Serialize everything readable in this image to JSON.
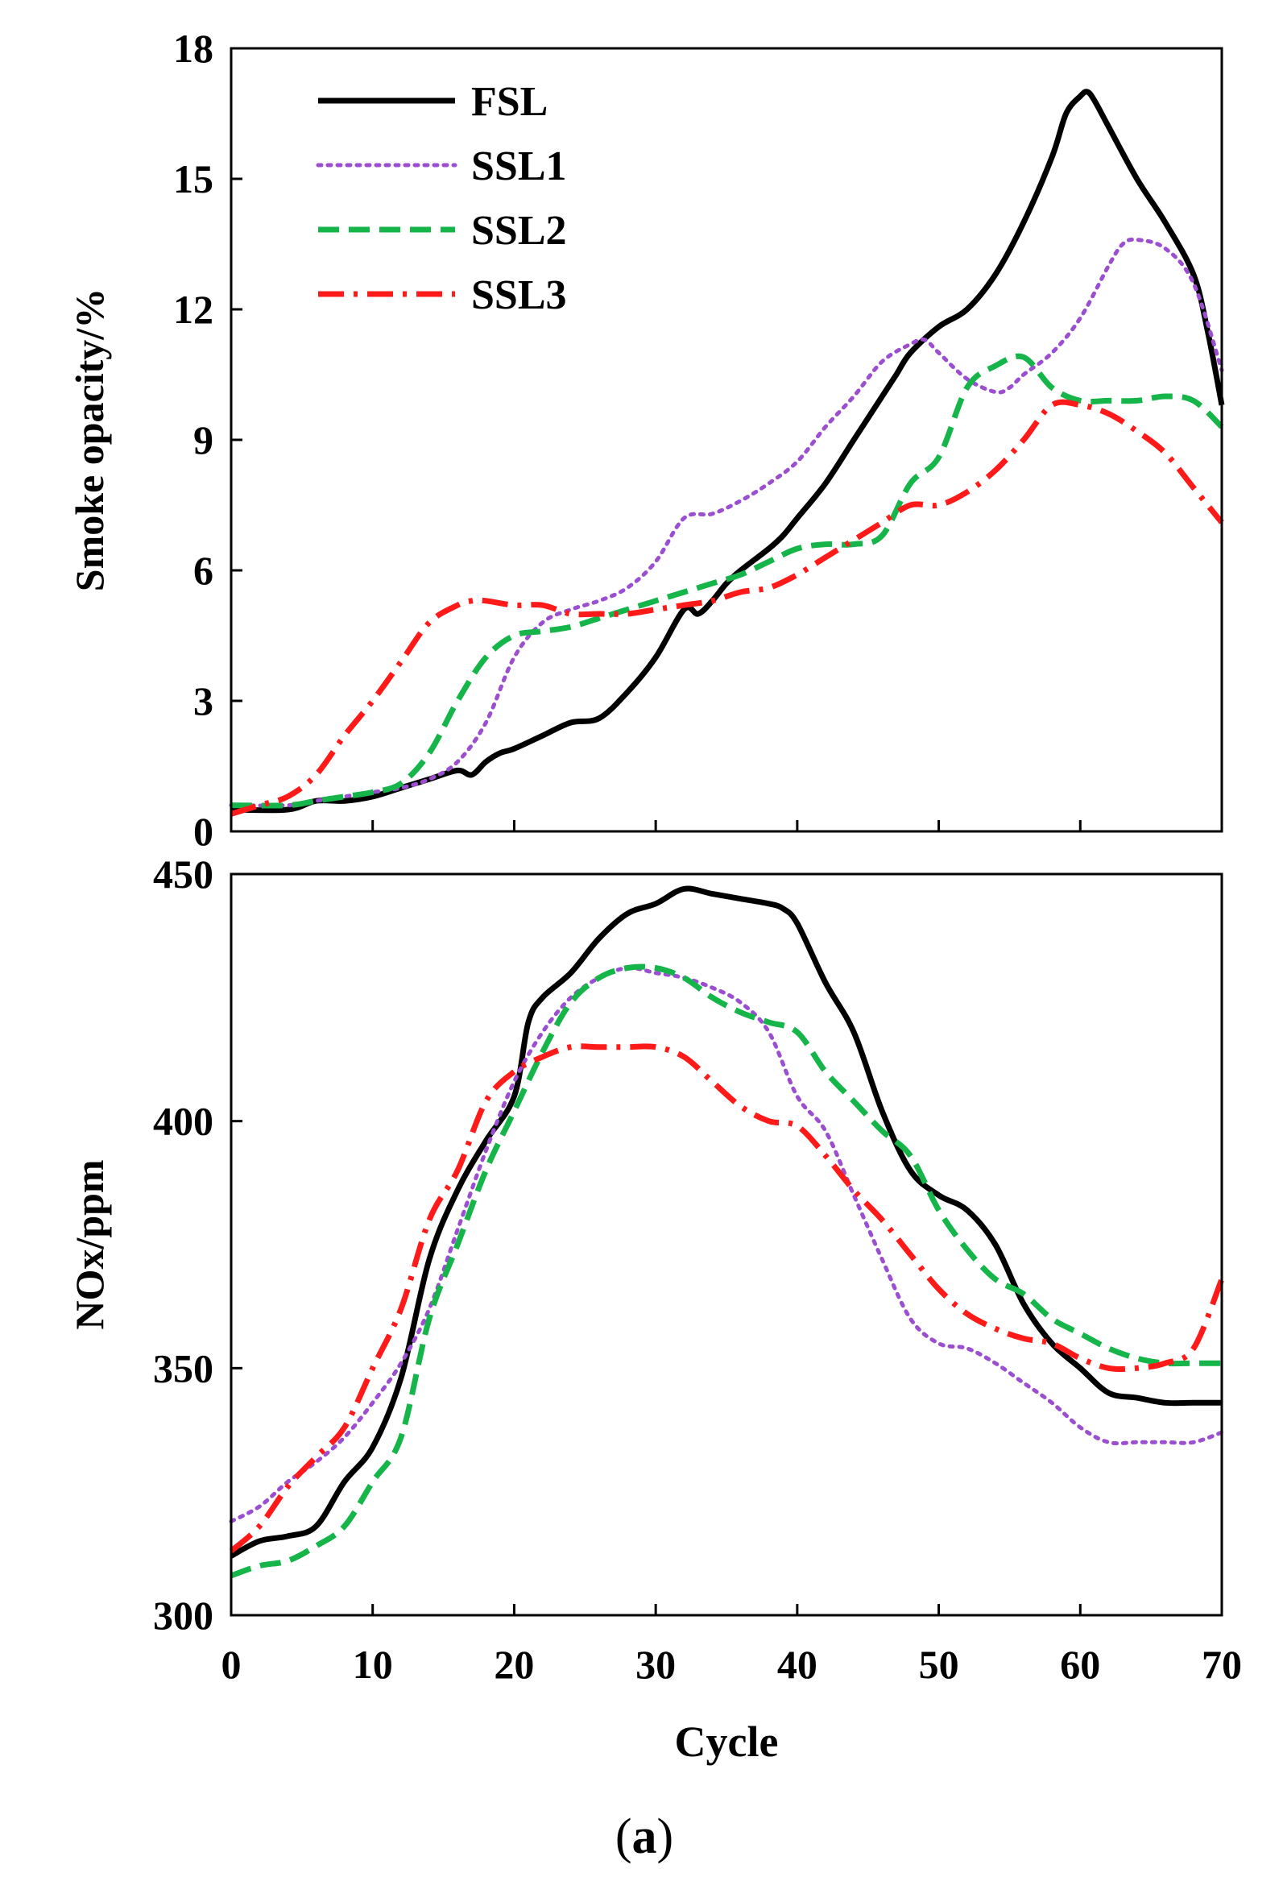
{
  "figure": {
    "caption_open": "(",
    "caption_letter": "a",
    "caption_close": ")"
  },
  "legend": {
    "entries": [
      {
        "label": "FSL",
        "color": "#000000",
        "dash": "solid"
      },
      {
        "label": "SSL1",
        "color": "#9b4fd0",
        "dash": "dotted"
      },
      {
        "label": "SSL2",
        "color": "#15b54a",
        "dash": "dashed"
      },
      {
        "label": "SSL3",
        "color": "#ff1a1a",
        "dash": "dashdot"
      }
    ]
  },
  "chart_data": [
    {
      "type": "line",
      "title": "",
      "ylabel": "Smoke opacity/%",
      "xlabel": "",
      "xlim": [
        0,
        70
      ],
      "ylim": [
        0,
        18
      ],
      "xticks": [
        0,
        10,
        20,
        30,
        40,
        50,
        60,
        70
      ],
      "yticks": [
        0,
        3,
        6,
        9,
        12,
        15,
        18
      ],
      "ytick_labels": [
        "0",
        "3",
        "6",
        "9",
        "12",
        "15",
        "18"
      ],
      "legend": "top-left",
      "series": [
        {
          "name": "FSL",
          "x": [
            0,
            4,
            6,
            8,
            10,
            12,
            14,
            16,
            17,
            18,
            19,
            20,
            22,
            24,
            26,
            28,
            30,
            32,
            33,
            34,
            35,
            36,
            38,
            39,
            40,
            42,
            44,
            46,
            47,
            48,
            50,
            52,
            54,
            56,
            58,
            59,
            60,
            60.5,
            61,
            62,
            64,
            66,
            68,
            69,
            70
          ],
          "y": [
            0.5,
            0.5,
            0.7,
            0.7,
            0.8,
            1.0,
            1.2,
            1.4,
            1.3,
            1.6,
            1.8,
            1.9,
            2.2,
            2.5,
            2.6,
            3.2,
            4.0,
            5.1,
            5.0,
            5.3,
            5.7,
            6.0,
            6.5,
            6.8,
            7.2,
            8.0,
            9.0,
            10.0,
            10.5,
            11.0,
            11.6,
            12.0,
            12.8,
            14.0,
            15.5,
            16.5,
            16.9,
            17.0,
            16.8,
            16.2,
            15.0,
            14.0,
            12.8,
            11.5,
            9.8
          ]
        },
        {
          "name": "SSL1",
          "x": [
            0,
            4,
            6,
            8,
            10,
            12,
            14,
            16,
            18,
            20,
            22,
            24,
            26,
            28,
            30,
            32,
            34,
            36,
            38,
            40,
            42,
            44,
            46,
            48,
            49,
            50,
            52,
            54,
            55,
            56,
            58,
            60,
            62,
            63,
            64,
            66,
            68,
            70
          ],
          "y": [
            0.6,
            0.6,
            0.7,
            0.8,
            0.9,
            1.0,
            1.2,
            1.6,
            2.5,
            4.0,
            4.8,
            5.1,
            5.3,
            5.6,
            6.2,
            7.2,
            7.3,
            7.6,
            8.0,
            8.5,
            9.3,
            10.0,
            10.8,
            11.2,
            11.3,
            11.0,
            10.4,
            10.1,
            10.2,
            10.5,
            11.0,
            11.8,
            13.0,
            13.5,
            13.6,
            13.4,
            12.6,
            10.6
          ]
        },
        {
          "name": "SSL2",
          "x": [
            0,
            4,
            6,
            8,
            10,
            12,
            14,
            16,
            18,
            20,
            22,
            24,
            26,
            28,
            30,
            32,
            34,
            36,
            38,
            40,
            42,
            44,
            46,
            48,
            50,
            52,
            54,
            56,
            58,
            60,
            62,
            64,
            66,
            68,
            70
          ],
          "y": [
            0.6,
            0.6,
            0.7,
            0.8,
            0.9,
            1.1,
            1.8,
            3.0,
            4.0,
            4.5,
            4.6,
            4.7,
            4.9,
            5.1,
            5.3,
            5.5,
            5.7,
            5.9,
            6.2,
            6.5,
            6.6,
            6.6,
            6.8,
            8.0,
            8.6,
            10.2,
            10.7,
            10.9,
            10.2,
            9.9,
            9.9,
            9.9,
            10.0,
            9.9,
            9.3
          ]
        },
        {
          "name": "SSL3",
          "x": [
            0,
            2,
            4,
            6,
            8,
            10,
            12,
            14,
            16,
            17,
            18,
            20,
            22,
            24,
            26,
            28,
            30,
            32,
            34,
            36,
            38,
            40,
            42,
            44,
            46,
            48,
            50,
            52,
            54,
            56,
            58,
            60,
            62,
            64,
            66,
            68,
            70
          ],
          "y": [
            0.4,
            0.6,
            0.8,
            1.3,
            2.2,
            3.0,
            3.9,
            4.8,
            5.2,
            5.3,
            5.3,
            5.2,
            5.2,
            5.0,
            5.0,
            5.0,
            5.1,
            5.2,
            5.3,
            5.5,
            5.6,
            5.9,
            6.3,
            6.7,
            7.1,
            7.5,
            7.5,
            7.8,
            8.3,
            9.0,
            9.8,
            9.8,
            9.6,
            9.2,
            8.7,
            7.9,
            7.1
          ]
        }
      ]
    },
    {
      "type": "line",
      "title": "",
      "ylabel": "NOx/ppm",
      "xlabel": "Cycle",
      "xlim": [
        0,
        70
      ],
      "ylim": [
        300,
        450
      ],
      "xticks": [
        0,
        10,
        20,
        30,
        40,
        50,
        60,
        70
      ],
      "xtick_labels": [
        "0",
        "10",
        "20",
        "30",
        "40",
        "50",
        "60",
        "70"
      ],
      "yticks": [
        300,
        350,
        400,
        450
      ],
      "ytick_labels": [
        "300",
        "350",
        "400",
        "450"
      ],
      "series": [
        {
          "name": "FSL",
          "x": [
            0,
            2,
            4,
            6,
            8,
            10,
            12,
            14,
            16,
            18,
            20,
            21,
            22,
            24,
            26,
            28,
            30,
            32,
            34,
            36,
            38,
            39,
            40,
            42,
            44,
            46,
            48,
            50,
            52,
            54,
            56,
            58,
            60,
            62,
            64,
            66,
            68,
            70
          ],
          "y": [
            312,
            315,
            316,
            318,
            327,
            334,
            348,
            372,
            386,
            396,
            405,
            420,
            425,
            430,
            437,
            442,
            444,
            447,
            446,
            445,
            444,
            443,
            440,
            428,
            418,
            402,
            390,
            385,
            382,
            375,
            363,
            355,
            350,
            345,
            344,
            343,
            343,
            343
          ]
        },
        {
          "name": "SSL1",
          "x": [
            0,
            2,
            4,
            6,
            8,
            10,
            12,
            14,
            16,
            18,
            20,
            22,
            24,
            26,
            28,
            30,
            32,
            34,
            36,
            38,
            40,
            42,
            44,
            46,
            48,
            50,
            52,
            54,
            56,
            58,
            60,
            62,
            64,
            66,
            68,
            70
          ],
          "y": [
            319,
            322,
            327,
            331,
            336,
            343,
            351,
            362,
            378,
            394,
            408,
            418,
            425,
            429,
            431,
            430,
            429,
            427,
            424,
            418,
            405,
            398,
            385,
            372,
            360,
            355,
            354,
            351,
            347,
            343,
            338,
            335,
            335,
            335,
            335,
            337
          ]
        },
        {
          "name": "SSL2",
          "x": [
            0,
            2,
            4,
            6,
            8,
            10,
            12,
            14,
            16,
            18,
            20,
            22,
            24,
            26,
            28,
            30,
            32,
            34,
            36,
            38,
            40,
            42,
            44,
            46,
            48,
            50,
            52,
            54,
            56,
            58,
            60,
            62,
            64,
            66,
            68,
            70
          ],
          "y": [
            308,
            310,
            311,
            314,
            318,
            327,
            336,
            360,
            375,
            390,
            402,
            414,
            424,
            429,
            431,
            431,
            429,
            425,
            422,
            420,
            418,
            410,
            404,
            398,
            393,
            382,
            374,
            368,
            365,
            360,
            357,
            354,
            352,
            351,
            351,
            351
          ]
        },
        {
          "name": "SSL3",
          "x": [
            0,
            2,
            4,
            6,
            8,
            10,
            12,
            14,
            16,
            18,
            20,
            22,
            24,
            26,
            28,
            30,
            32,
            34,
            36,
            38,
            40,
            42,
            44,
            46,
            48,
            50,
            52,
            54,
            56,
            58,
            60,
            62,
            64,
            66,
            68,
            70
          ],
          "y": [
            313,
            318,
            326,
            332,
            338,
            350,
            362,
            380,
            390,
            404,
            410,
            413,
            415,
            415,
            415,
            415,
            413,
            408,
            403,
            400,
            399,
            393,
            386,
            380,
            373,
            366,
            361,
            358,
            356,
            355,
            352,
            350,
            350,
            351,
            354,
            368
          ]
        }
      ]
    }
  ]
}
